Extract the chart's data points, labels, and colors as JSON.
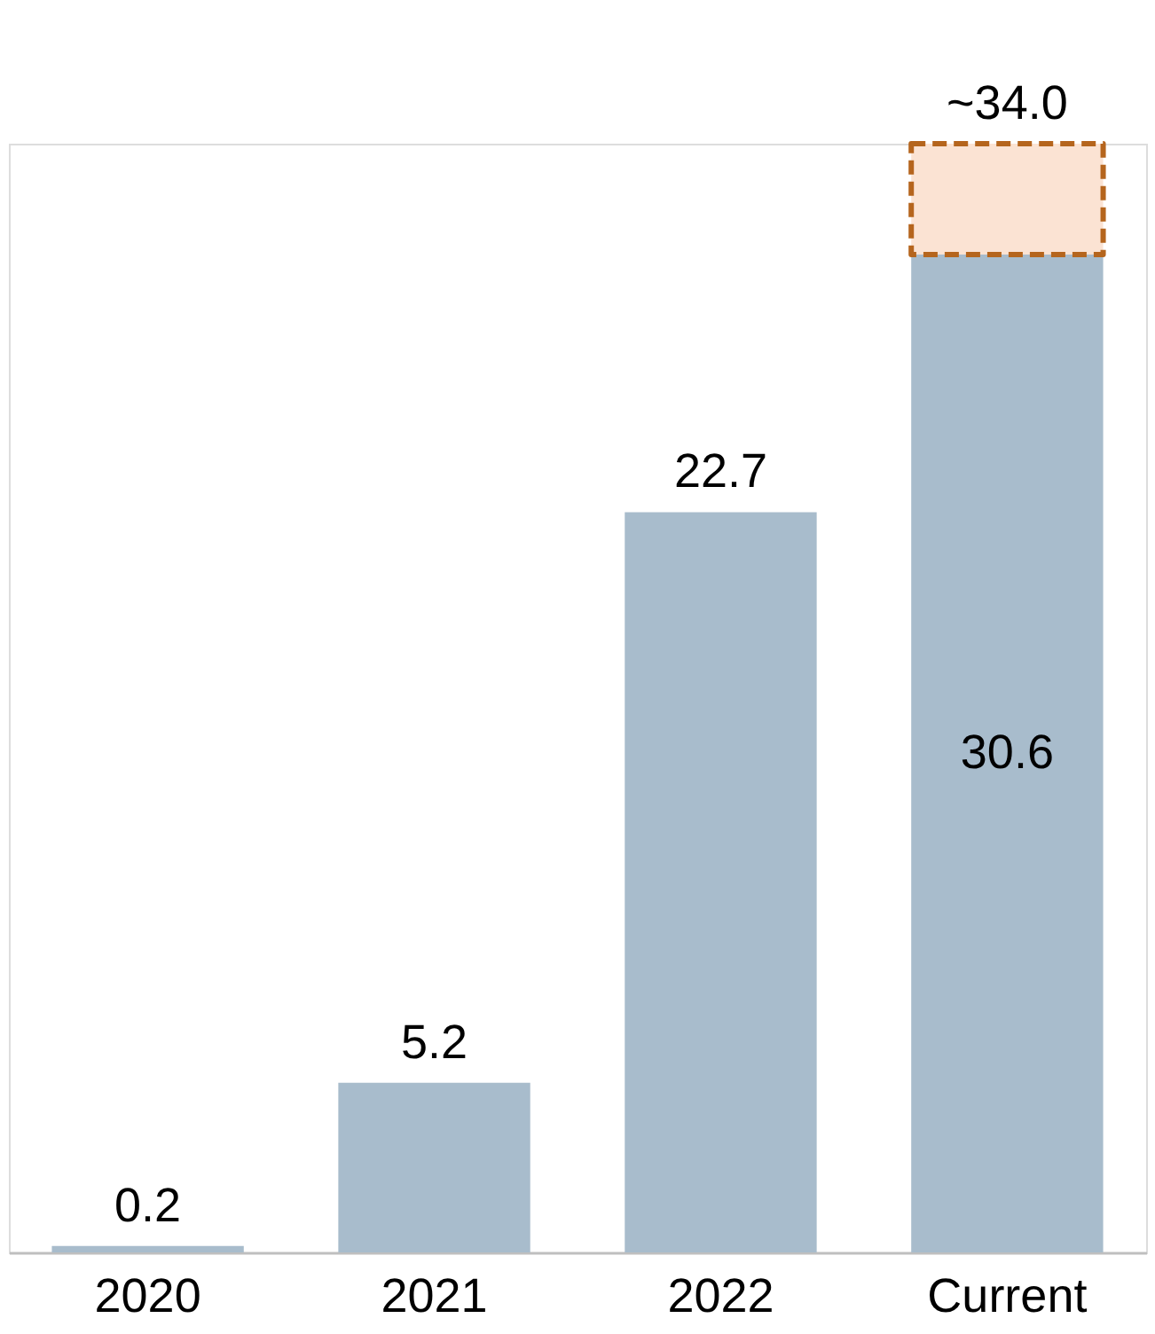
{
  "chart_data": {
    "type": "bar",
    "stacked": true,
    "categories": [
      "2020",
      "2021",
      "2022",
      "Current"
    ],
    "series": [
      {
        "color": "#a8bccc",
        "values": [
          0.2,
          5.2,
          22.7,
          30.6
        ],
        "value_labels": [
          "0.2",
          "5.2",
          "22.7",
          "30.6"
        ]
      },
      {
        "color": "#fbe3d3",
        "values": [
          null,
          null,
          null,
          3.4
        ],
        "line_style": "dashed"
      }
    ],
    "totals": [
      null,
      null,
      null,
      "~34.0"
    ]
  }
}
